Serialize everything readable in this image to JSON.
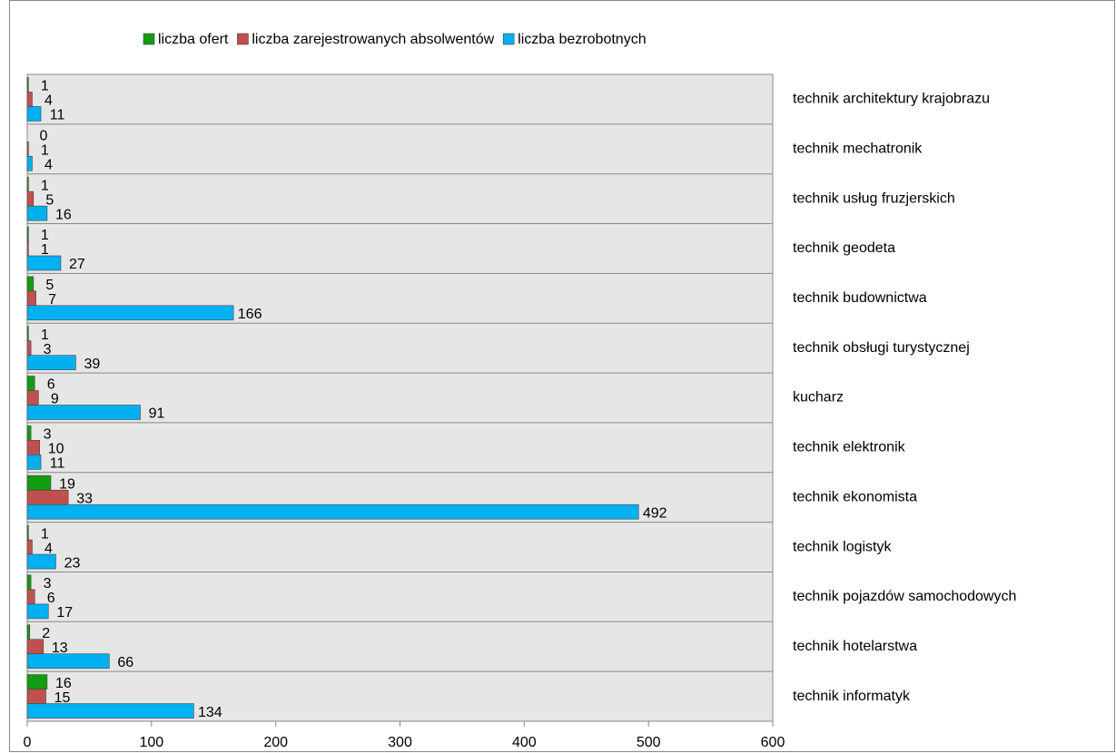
{
  "chart_data": {
    "type": "hbar",
    "categories": [
      "technik architektury krajobrazu",
      "technik mechatronik",
      "technik usług fruzjerskich",
      "technik geodeta",
      "technik budownictwa",
      "technik obsługi turystycznej",
      "kucharz",
      "technik elektronik",
      "technik ekonomista",
      "technik logistyk",
      "technik pojazdów samochodowych",
      "technik hotelarstwa",
      "technik informatyk"
    ],
    "series": [
      {
        "name": "liczba ofert",
        "color": "#129c12",
        "values": [
          1,
          0,
          1,
          1,
          5,
          1,
          6,
          3,
          19,
          1,
          3,
          2,
          16
        ]
      },
      {
        "name": "liczba zarejestrowanych absolwentów",
        "color": "#c0504d",
        "values": [
          4,
          1,
          5,
          1,
          7,
          3,
          9,
          10,
          33,
          4,
          6,
          13,
          15
        ]
      },
      {
        "name": "liczba bezrobotnych",
        "color": "#00b0f0",
        "values": [
          11,
          4,
          16,
          27,
          166,
          39,
          91,
          11,
          492,
          23,
          17,
          66,
          134
        ]
      }
    ],
    "xlim": [
      0,
      600
    ],
    "xticks": [
      0,
      100,
      200,
      300,
      400,
      500,
      600
    ],
    "grid": true,
    "legend": "top"
  }
}
